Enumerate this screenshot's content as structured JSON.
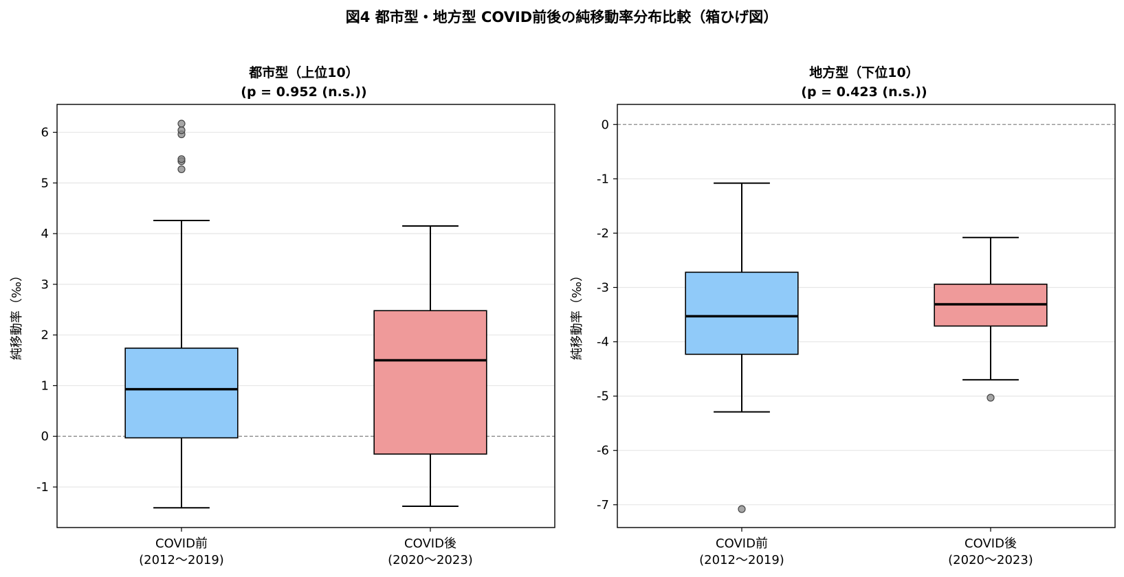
{
  "figure": {
    "title": "図4 都市型・地方型 COVID前後の純移動率分布比較（箱ひげ図）"
  },
  "colors": {
    "before": "#90caf9",
    "after": "#ef9a9a",
    "median": "#000000",
    "grid": "#e6e6e6",
    "zero_line": "#888888",
    "outlier": "#888888"
  },
  "chart_data": [
    {
      "type": "box",
      "title_line1": "都市型（上位10）",
      "title_line2": "(p = 0.952 (n.s.))",
      "ylabel": "純移動率（‰）",
      "ylim": [
        -1.8,
        6.55
      ],
      "yticks": [
        -1,
        0,
        1,
        2,
        3,
        4,
        5,
        6
      ],
      "ytick_labels": [
        "-1",
        "0",
        "1",
        "2",
        "3",
        "4",
        "5",
        "6"
      ],
      "reference_line": 0,
      "grid": "y",
      "categories": [
        {
          "line1": "COVID前",
          "line2": "(2012〜2019)"
        },
        {
          "line1": "COVID後",
          "line2": "(2020〜2023)"
        }
      ],
      "boxes": [
        {
          "whisker_low": -1.41,
          "q1": -0.03,
          "median": 0.93,
          "q3": 1.74,
          "whisker_high": 4.26,
          "outliers": [
            5.27,
            5.43,
            5.47,
            5.96,
            6.04,
            6.17
          ]
        },
        {
          "whisker_low": -1.38,
          "q1": -0.35,
          "median": 1.5,
          "q3": 2.48,
          "whisker_high": 4.15,
          "outliers": []
        }
      ]
    },
    {
      "type": "box",
      "title_line1": "地方型（下位10）",
      "title_line2": "(p = 0.423 (n.s.))",
      "ylabel": "純移動率（‰）",
      "ylim": [
        -7.42,
        0.37
      ],
      "yticks": [
        -7,
        -6,
        -5,
        -4,
        -3,
        -2,
        -1,
        0
      ],
      "ytick_labels": [
        "-7",
        "-6",
        "-5",
        "-4",
        "-3",
        "-2",
        "-1",
        "0"
      ],
      "reference_line": 0,
      "grid": "y",
      "categories": [
        {
          "line1": "COVID前",
          "line2": "(2012〜2019)"
        },
        {
          "line1": "COVID後",
          "line2": "(2020〜2023)"
        }
      ],
      "boxes": [
        {
          "whisker_low": -5.29,
          "q1": -4.23,
          "median": -3.53,
          "q3": -2.72,
          "whisker_high": -1.08,
          "outliers": [
            -7.08
          ]
        },
        {
          "whisker_low": -4.7,
          "q1": -3.71,
          "median": -3.31,
          "q3": -2.94,
          "whisker_high": -2.08,
          "outliers": [
            -5.03
          ]
        }
      ]
    }
  ]
}
